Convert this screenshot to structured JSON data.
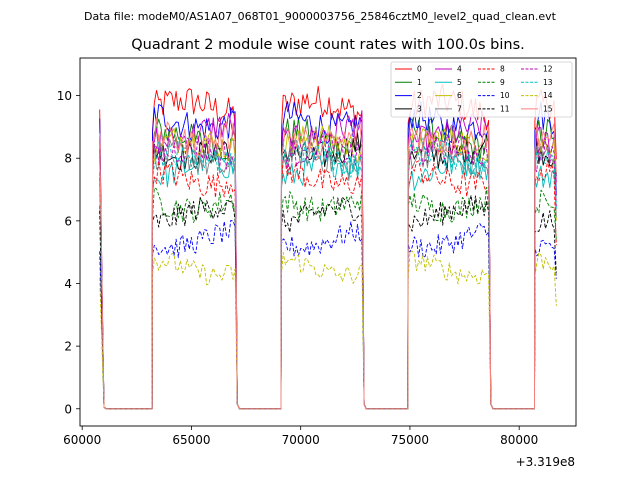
{
  "header": {
    "data_file": "Data file: modeM0/AS1A07_068T01_9000003756_25846cztM0_level2_quad_clean.evt"
  },
  "chart_data": {
    "type": "line",
    "title": "Quadrant 2 module wise count rates with 100.0s bins.",
    "xlabel": "",
    "ylabel": "",
    "x_offset_label": "+3.319e8",
    "xlim": [
      59900,
      82600
    ],
    "ylim": [
      -0.55,
      11.2
    ],
    "x_ticks": [
      60000,
      65000,
      70000,
      75000,
      80000
    ],
    "x_tick_labels": [
      "60000",
      "65000",
      "70000",
      "75000",
      "80000"
    ],
    "y_ticks": [
      0,
      2,
      4,
      6,
      8,
      10
    ],
    "y_tick_labels": [
      "0",
      "2",
      "4",
      "6",
      "8",
      "10"
    ],
    "legend_position": "top-right",
    "legend_columns": 4,
    "segments": [
      {
        "on": 60800,
        "off": 61000,
        "fade": true
      },
      {
        "on": 63200,
        "off": 67100
      },
      {
        "on": 69100,
        "off": 72900
      },
      {
        "on": 74900,
        "off": 78700
      },
      {
        "on": 80700,
        "off": 81700
      }
    ],
    "gaps": [
      [
        61000,
        63200
      ],
      [
        67100,
        69100
      ],
      [
        72900,
        74900
      ],
      [
        78700,
        80700
      ]
    ],
    "series": [
      {
        "name": "0",
        "color": "#ff0000",
        "dashed": false,
        "level": 9.6
      },
      {
        "name": "1",
        "color": "#008000",
        "dashed": false,
        "level": 8.6
      },
      {
        "name": "2",
        "color": "#0000ff",
        "dashed": false,
        "level": 9.2
      },
      {
        "name": "3",
        "color": "#000000",
        "dashed": false,
        "level": 8.3
      },
      {
        "name": "4",
        "color": "#bf00bf",
        "dashed": false,
        "level": 8.8
      },
      {
        "name": "5",
        "color": "#00bfbf",
        "dashed": false,
        "level": 7.6
      },
      {
        "name": "6",
        "color": "#bfbf00",
        "dashed": false,
        "level": 8.4
      },
      {
        "name": "7",
        "color": "#808080",
        "dashed": false,
        "level": 7.9
      },
      {
        "name": "8",
        "color": "#ff0000",
        "dashed": true,
        "level": 7.4
      },
      {
        "name": "9",
        "color": "#008000",
        "dashed": true,
        "level": 6.6
      },
      {
        "name": "10",
        "color": "#0000ff",
        "dashed": true,
        "level": 5.4
      },
      {
        "name": "11",
        "color": "#000000",
        "dashed": true,
        "level": 6.2
      },
      {
        "name": "12",
        "color": "#bf00bf",
        "dashed": true,
        "level": 8.1
      },
      {
        "name": "13",
        "color": "#00bfbf",
        "dashed": true,
        "level": 8.0
      },
      {
        "name": "14",
        "color": "#bfbf00",
        "dashed": true,
        "level": 4.5
      },
      {
        "name": "15",
        "color": "#ff7f7f",
        "dashed": false,
        "level": 8.7
      }
    ]
  }
}
